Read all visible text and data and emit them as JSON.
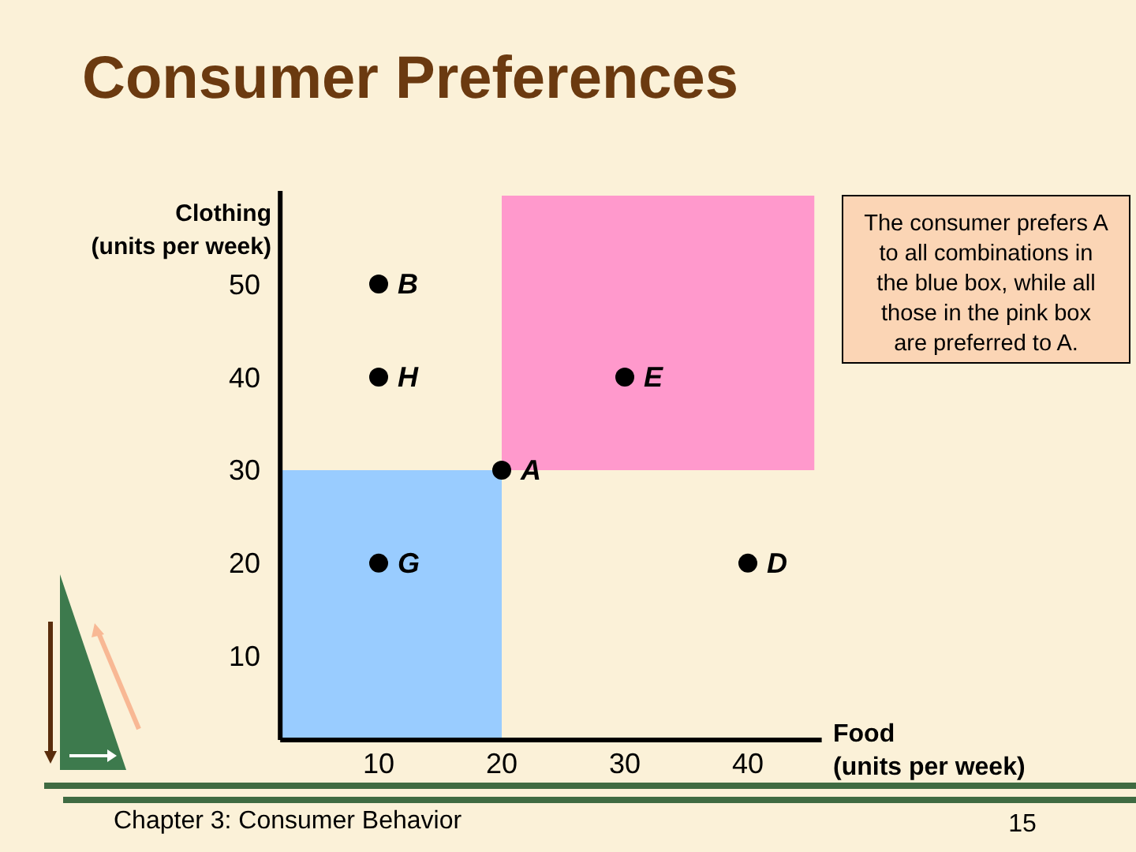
{
  "chart_data": {
    "type": "scatter",
    "title": "Consumer Preferences",
    "xlabel": "Food\n(units per week)",
    "ylabel": "Clothing\n(units per week)",
    "xlim": [
      2,
      46
    ],
    "ylim": [
      1,
      60
    ],
    "xticks": [
      10,
      20,
      30,
      40
    ],
    "yticks": [
      10,
      20,
      30,
      40,
      50
    ],
    "grid": false,
    "marker": "circle",
    "series": [
      {
        "type": "area",
        "color": "#99ccff",
        "x": [
          2,
          20
        ],
        "values": [
          30,
          30
        ],
        "marker": "none"
      },
      {
        "type": "area",
        "color": "#ff99cc",
        "x": [
          20,
          45.4
        ],
        "values": [
          null,
          null
        ],
        "lower": [
          30,
          30
        ],
        "upper": [
          59.5,
          59.5
        ],
        "marker": "none"
      },
      {
        "name": "B",
        "color": "#000000",
        "x": [
          10
        ],
        "values": [
          50
        ]
      },
      {
        "name": "H",
        "color": "#000000",
        "x": [
          10
        ],
        "values": [
          40
        ]
      },
      {
        "name": "E",
        "color": "#000000",
        "x": [
          30
        ],
        "values": [
          40
        ]
      },
      {
        "name": "A",
        "color": "#000000",
        "x": [
          20
        ],
        "values": [
          30
        ]
      },
      {
        "name": "G",
        "color": "#000000",
        "x": [
          10
        ],
        "values": [
          20
        ]
      },
      {
        "name": "D",
        "color": "#000000",
        "x": [
          40
        ],
        "values": [
          20
        ]
      }
    ],
    "annotations": [
      "The consumer prefers A to all combinations in the blue box, while all those in the pink box are preferred to A.",
      "Chapter 3: Consumer Behavior",
      "15"
    ]
  }
}
